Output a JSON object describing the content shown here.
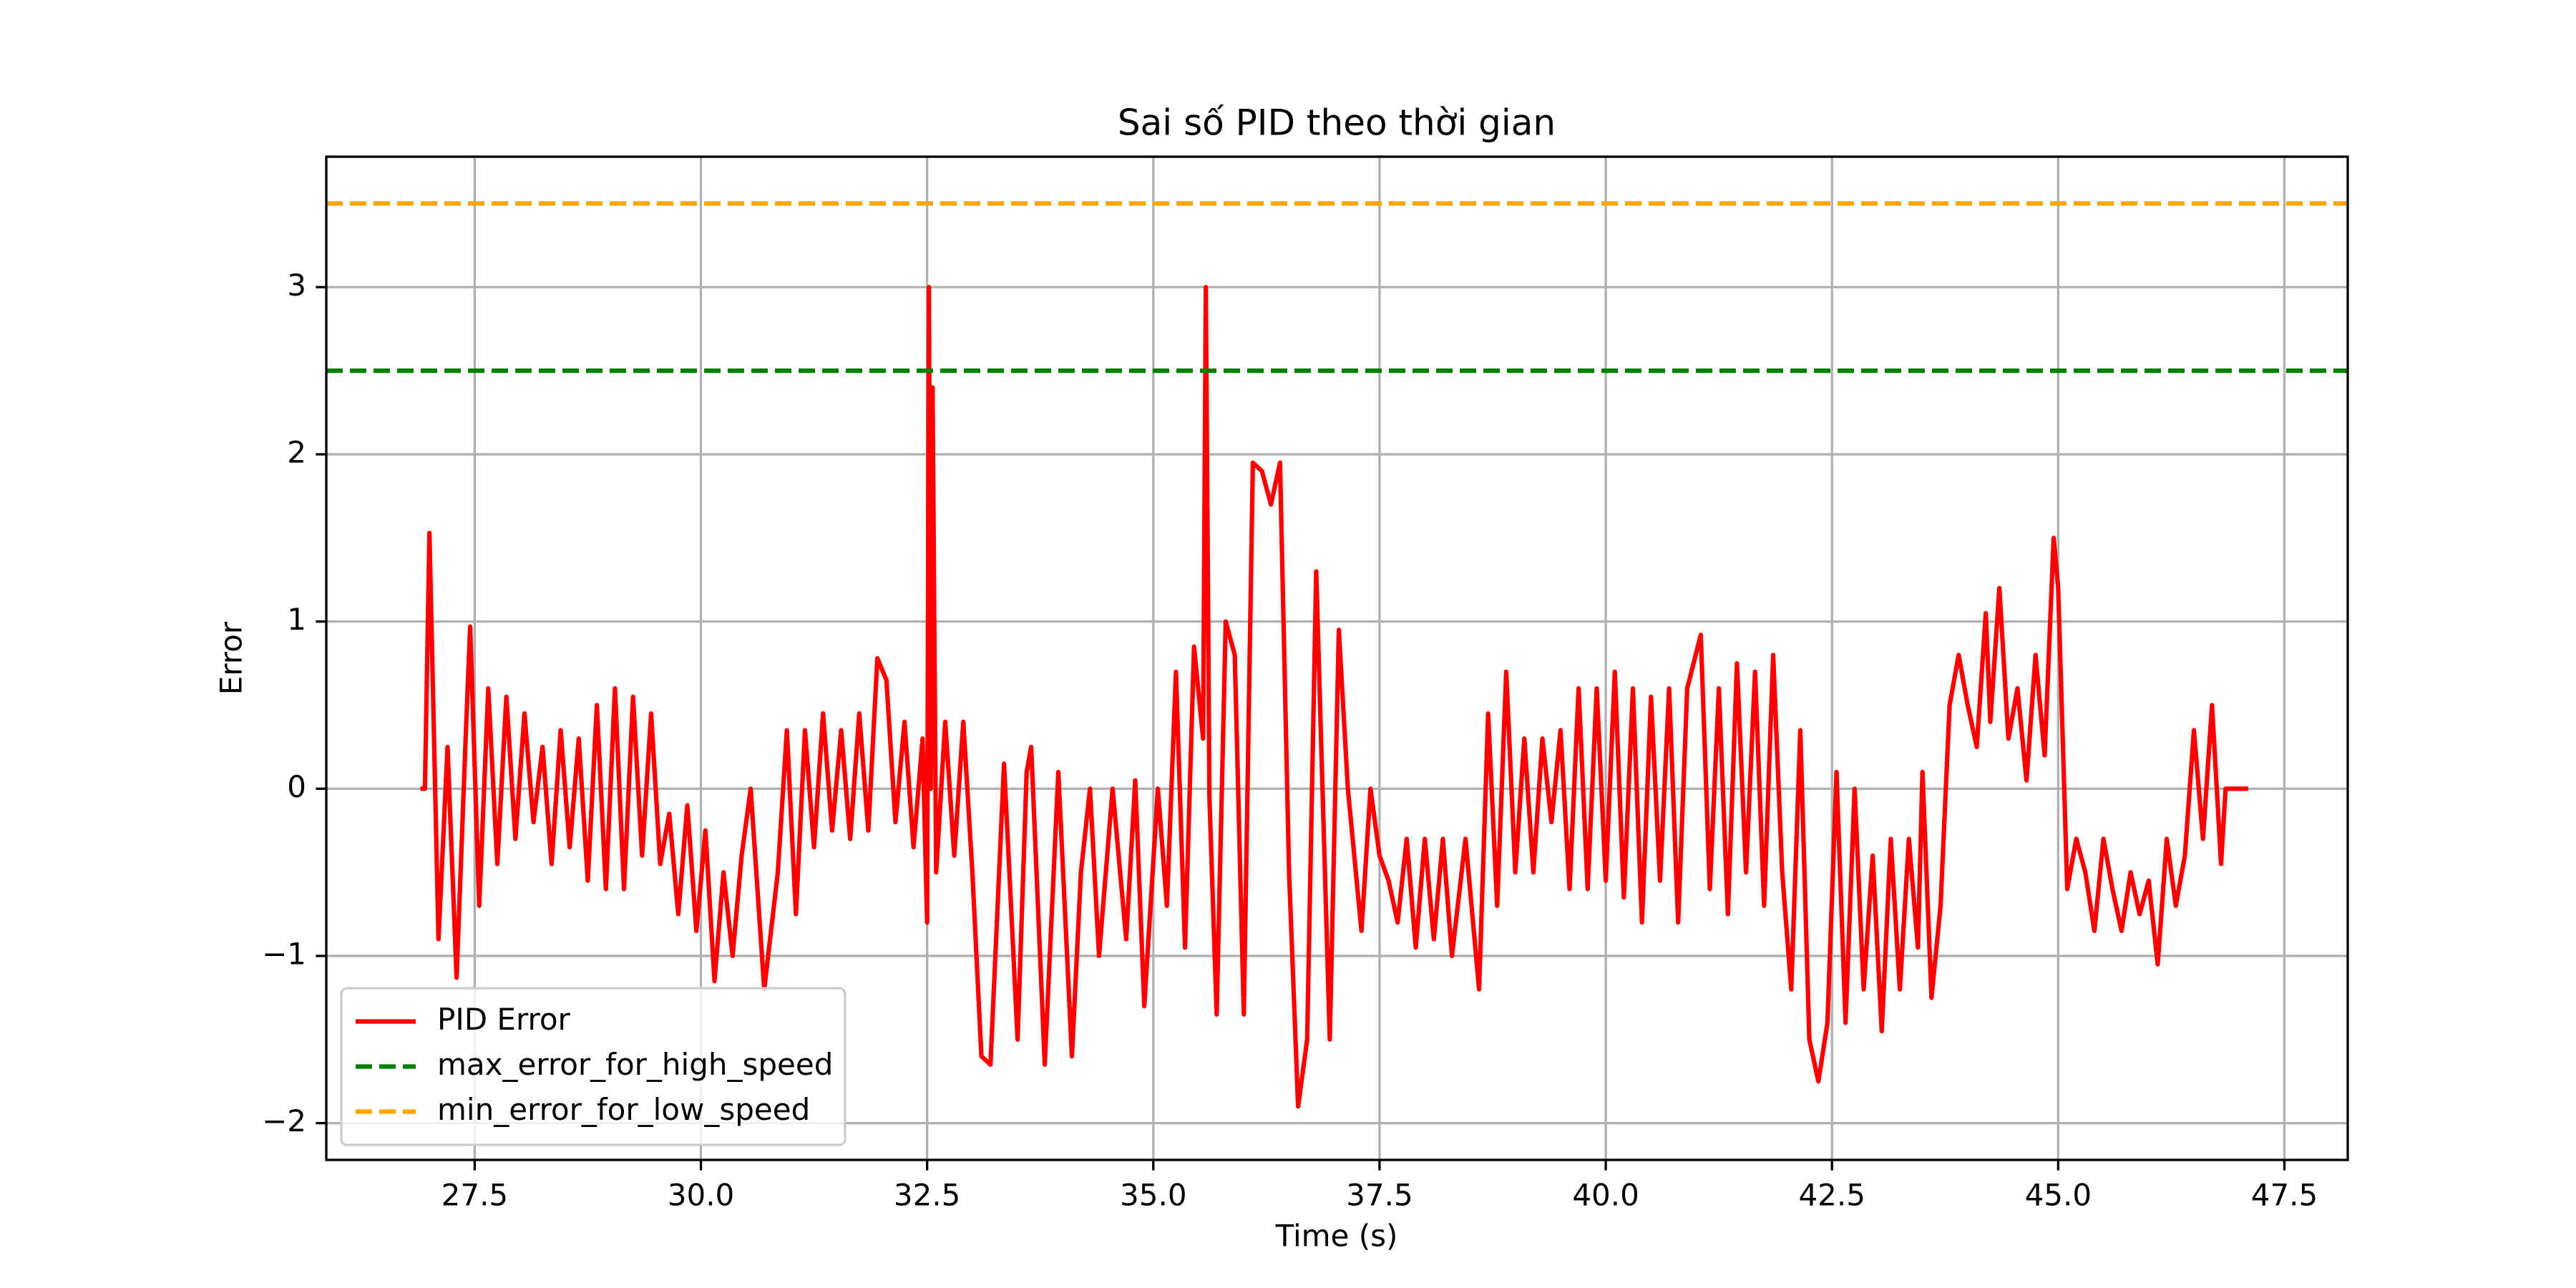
{
  "chart_data": {
    "type": "line",
    "title": "Sai số PID theo thời gian",
    "xlabel": "Time (s)",
    "ylabel": "Error",
    "xlim": [
      25.86,
      48.2
    ],
    "ylim": [
      -2.22,
      3.78
    ],
    "xticks": [
      27.5,
      {
        "value": 30,
        "label": "30.0"
      },
      32.5,
      {
        "value": 35,
        "label": "35.0"
      },
      37.5,
      {
        "value": 40,
        "label": "40.0"
      },
      42.5,
      {
        "value": 45,
        "label": "45.0"
      },
      47.5
    ],
    "yticks": [
      {
        "value": -2,
        "label": "−2"
      },
      {
        "value": -1,
        "label": "−1"
      },
      0,
      1,
      2,
      3
    ],
    "grid": true,
    "legend": "lower left",
    "x": [
      26.9,
      26.95,
      27.0,
      27.1,
      27.2,
      27.3,
      27.4,
      27.45,
      27.55,
      27.65,
      27.75,
      27.85,
      27.95,
      28.05,
      28.15,
      28.25,
      28.35,
      28.45,
      28.55,
      28.65,
      28.75,
      28.85,
      28.95,
      29.05,
      29.15,
      29.25,
      29.35,
      29.45,
      29.55,
      29.65,
      29.75,
      29.85,
      29.95,
      30.05,
      30.15,
      30.25,
      30.35,
      30.45,
      30.55,
      30.7,
      30.85,
      30.95,
      31.05,
      31.15,
      31.25,
      31.35,
      31.45,
      31.55,
      31.65,
      31.75,
      31.85,
      31.95,
      32.05,
      32.15,
      32.25,
      32.35,
      32.45,
      32.5,
      32.52,
      32.54,
      32.56,
      32.6,
      32.7,
      32.8,
      32.9,
      33.0,
      33.1,
      33.2,
      33.35,
      33.5,
      33.6,
      33.65,
      33.8,
      33.95,
      34.1,
      34.2,
      34.3,
      34.4,
      34.55,
      34.7,
      34.8,
      34.9,
      35.05,
      35.15,
      35.25,
      35.35,
      35.45,
      35.55,
      35.58,
      35.62,
      35.7,
      35.8,
      35.9,
      36.0,
      36.1,
      36.2,
      36.3,
      36.4,
      36.5,
      36.6,
      36.7,
      36.8,
      36.95,
      37.05,
      37.15,
      37.3,
      37.4,
      37.5,
      37.6,
      37.7,
      37.8,
      37.9,
      38.0,
      38.1,
      38.2,
      38.3,
      38.45,
      38.6,
      38.7,
      38.8,
      38.9,
      39.0,
      39.1,
      39.2,
      39.3,
      39.4,
      39.5,
      39.6,
      39.7,
      39.8,
      39.9,
      40.0,
      40.1,
      40.2,
      40.3,
      40.4,
      40.5,
      40.6,
      40.7,
      40.8,
      40.9,
      41.05,
      41.15,
      41.25,
      41.35,
      41.45,
      41.55,
      41.65,
      41.75,
      41.85,
      41.95,
      42.05,
      42.15,
      42.25,
      42.35,
      42.45,
      42.55,
      42.65,
      42.75,
      42.85,
      42.95,
      43.05,
      43.15,
      43.25,
      43.35,
      43.45,
      43.5,
      43.6,
      43.7,
      43.8,
      43.9,
      44.0,
      44.1,
      44.2,
      44.25,
      44.35,
      44.45,
      44.55,
      44.65,
      44.75,
      44.85,
      44.95,
      45.0,
      45.1,
      45.2,
      45.3,
      45.4,
      45.5,
      45.6,
      45.7,
      45.8,
      45.9,
      46.0,
      46.1,
      46.2,
      46.3,
      46.4,
      46.5,
      46.6,
      46.7,
      46.8,
      46.85,
      47.0,
      47.1
    ],
    "series": [
      {
        "name": "PID Error",
        "color": "red",
        "style": "solid",
        "values": [
          0,
          0,
          1.53,
          -0.9,
          0.25,
          -1.13,
          0.3,
          0.97,
          -0.7,
          0.6,
          -0.45,
          0.55,
          -0.3,
          0.45,
          -0.2,
          0.25,
          -0.45,
          0.35,
          -0.35,
          0.3,
          -0.55,
          0.5,
          -0.6,
          0.6,
          -0.6,
          0.55,
          -0.4,
          0.45,
          -0.45,
          -0.15,
          -0.75,
          -0.1,
          -0.85,
          -0.25,
          -1.15,
          -0.5,
          -1.0,
          -0.4,
          0.0,
          -1.2,
          -0.5,
          0.35,
          -0.75,
          0.35,
          -0.35,
          0.45,
          -0.25,
          0.35,
          -0.3,
          0.45,
          -0.25,
          0.78,
          0.65,
          -0.2,
          0.4,
          -0.35,
          0.3,
          -0.8,
          3.0,
          0.0,
          2.4,
          -0.5,
          0.4,
          -0.4,
          0.4,
          -0.5,
          -1.6,
          -1.65,
          0.15,
          -1.5,
          0.1,
          0.25,
          -1.65,
          0.1,
          -1.6,
          -0.5,
          0.0,
          -1.0,
          0.0,
          -0.9,
          0.05,
          -1.3,
          0.0,
          -0.7,
          0.7,
          -0.95,
          0.85,
          0.3,
          3.0,
          -0.05,
          -1.35,
          1.0,
          0.8,
          -1.35,
          1.95,
          1.9,
          1.7,
          1.95,
          -0.5,
          -1.9,
          -1.5,
          1.3,
          -1.5,
          0.95,
          0.0,
          -0.85,
          0.0,
          -0.4,
          -0.55,
          -0.8,
          -0.3,
          -0.95,
          -0.3,
          -0.9,
          -0.3,
          -1.0,
          -0.3,
          -1.2,
          0.45,
          -0.7,
          0.7,
          -0.5,
          0.3,
          -0.5,
          0.3,
          -0.2,
          0.35,
          -0.6,
          0.6,
          -0.6,
          0.6,
          -0.55,
          0.7,
          -0.65,
          0.6,
          -0.8,
          0.55,
          -0.55,
          0.6,
          -0.8,
          0.6,
          0.92,
          -0.6,
          0.6,
          -0.75,
          0.75,
          -0.5,
          0.7,
          -0.7,
          0.8,
          -0.5,
          -1.2,
          0.35,
          -1.5,
          -1.75,
          -1.4,
          0.1,
          -1.4,
          0.0,
          -1.2,
          -0.4,
          -1.45,
          -0.3,
          -1.2,
          -0.3,
          -0.95,
          0.1,
          -1.25,
          -0.7,
          0.5,
          0.8,
          0.5,
          0.25,
          1.05,
          0.4,
          1.2,
          0.3,
          0.6,
          0.05,
          0.8,
          0.2,
          1.5,
          1.2,
          -0.6,
          -0.3,
          -0.5,
          -0.85,
          -0.3,
          -0.6,
          -0.85,
          -0.5,
          -0.75,
          -0.55,
          -1.05,
          -0.3,
          -0.7,
          -0.4,
          0.35,
          -0.3,
          0.5,
          -0.45,
          0.0,
          0.0,
          0.0
        ]
      },
      {
        "name": "max_error_for_high_speed",
        "color": "green",
        "style": "dashed",
        "y": 2.5
      },
      {
        "name": "min_error_for_low_speed",
        "color": "orange",
        "style": "dashed",
        "y": 3.5
      }
    ]
  }
}
